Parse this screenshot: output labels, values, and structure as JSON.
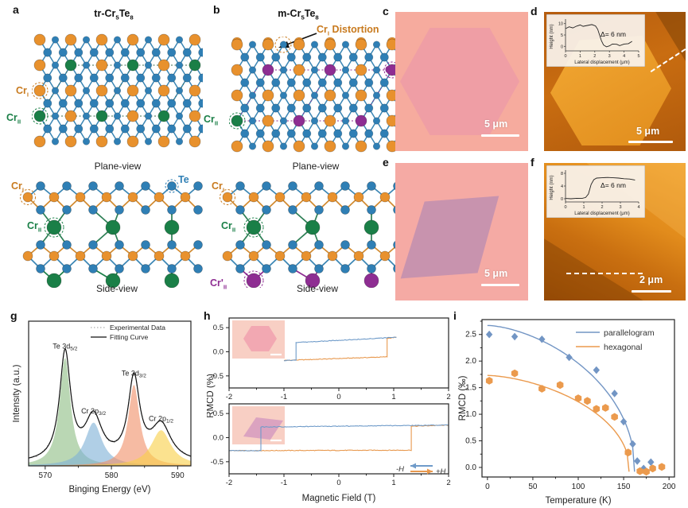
{
  "panel_labels": {
    "a": "a",
    "b": "b",
    "c": "c",
    "d": "d",
    "e": "e",
    "f": "f",
    "g": "g",
    "h": "h",
    "i": "i"
  },
  "colors": {
    "te_atom": "#2f7fb5",
    "cr1_atom": "#e8912d",
    "cr2_atom": "#1a7f47",
    "cr2p_atom": "#8e2d92",
    "bond": "#3b86b4",
    "series_blue": "#7295c4",
    "series_orange": "#eb9a4d",
    "optical_bg": "#f6ab9e",
    "optical_hexagon": "#ee9ca6",
    "optical_parallelogram": "#c08fb0",
    "afm_bright": "#f0a02c",
    "afm_dark": "#a9540c"
  },
  "panel_a": {
    "title": {
      "p1": "tr-Cr",
      "s1": "5",
      "p2": "Te",
      "s2": "8"
    },
    "plane_caption": "Plane-view",
    "side_caption": "Side-view",
    "cr1": {
      "t": "Cr",
      "s": "I"
    },
    "cr2": {
      "t": "Cr",
      "s": "II"
    },
    "te_label": "Te"
  },
  "panel_b": {
    "title": {
      "p1": "m-Cr",
      "s1": "5",
      "p2": "Te",
      "s2": "8"
    },
    "distortion": {
      "t": "Cr",
      "s": "I",
      "rest": " Distortion"
    },
    "plane_caption": "Plane-view",
    "side_caption": "Side-view",
    "cr1": {
      "t": "Cr",
      "s": "I"
    },
    "cr2": {
      "t": "Cr",
      "s": "II"
    },
    "cr2p": {
      "t": "Cr'",
      "s": "II"
    }
  },
  "panel_c": {
    "scale_bar": "5 μm"
  },
  "panel_d": {
    "scale_bar": "5 μm"
  },
  "panel_e": {
    "scale_bar": "5 μm"
  },
  "panel_f": {
    "scale_bar": "2 μm"
  },
  "chart_data": [
    {
      "id": "xps",
      "type": "line",
      "panel": "g",
      "xlabel": "Binging Energy (eV)",
      "ylabel": "Intensity (a.u.)",
      "xlim": [
        567.5,
        592
      ],
      "xticks": [
        570,
        580,
        590
      ],
      "xminor": [
        575,
        585
      ],
      "legend": [
        {
          "label": "Experimental Data",
          "style": "dotted"
        },
        {
          "label": "Fitting Curve",
          "style": "solid"
        }
      ],
      "baseline": 0.025,
      "peaks": [
        {
          "name": "Te 3d",
          "sub": "5/2",
          "center": 573.0,
          "height": 1.0,
          "width": 1.0,
          "color": "#8fbf86"
        },
        {
          "name": "Cr 2p",
          "sub": "3/2",
          "center": 577.3,
          "height": 0.4,
          "width": 1.55,
          "color": "#7fb2d7"
        },
        {
          "name": "Te 3d",
          "sub": "3/2",
          "center": 583.4,
          "height": 0.75,
          "width": 1.05,
          "color": "#f0926a"
        },
        {
          "name": "Cr 2p",
          "sub": "1/2",
          "center": 587.5,
          "height": 0.33,
          "width": 1.8,
          "color": "#f8d04b"
        }
      ]
    },
    {
      "id": "rmcd_loops",
      "type": "hysteresis",
      "panel": "h",
      "xlabel": "Magnetic Field (T)",
      "ylabel": "RMCD (%)",
      "xlim": [
        -2,
        2
      ],
      "ylim": [
        -0.75,
        0.7
      ],
      "xticks": [
        -2,
        -1,
        0,
        1,
        2
      ],
      "yticks": [
        0.5,
        0.0,
        -0.5
      ],
      "colors": {
        "down": "#6f9bc9",
        "up": "#e8994f"
      },
      "arrow_legend": {
        "neg": "-H",
        "pos": "+H"
      },
      "panels": [
        {
          "inset": "hexagonal",
          "sweep_down": {
            "x_start": 1.05,
            "y_start": 0.3,
            "x_jump": -0.78,
            "y_before": 0.19,
            "y_after": -0.175,
            "x_end": -1.0,
            "y_end": -0.18
          },
          "sweep_up": {
            "x_start": -1.0,
            "y_start": -0.18,
            "x_jump": 0.88,
            "y_before": -0.105,
            "y_after": 0.28,
            "x_end": 1.05,
            "y_end": 0.3
          }
        },
        {
          "inset": "parallelogram",
          "sweep_down": {
            "x_start": 2.0,
            "y_start": 0.26,
            "x_jump": -1.42,
            "y_before": 0.22,
            "y_after": -0.27,
            "x_end": -2.0,
            "y_end": -0.27
          },
          "sweep_up": {
            "x_start": -2.0,
            "y_start": -0.27,
            "x_jump": 1.32,
            "y_before": -0.26,
            "y_after": 0.235,
            "x_end": 2.0,
            "y_end": 0.26
          }
        }
      ]
    },
    {
      "id": "rmcd_vs_T",
      "type": "scatter",
      "panel": "i",
      "xlabel": "Temperature (K)",
      "ylabel": "RMCD (‰)",
      "xlim": [
        -6,
        206
      ],
      "ylim": [
        -0.18,
        2.78
      ],
      "xticks": [
        0,
        50,
        100,
        150,
        200
      ],
      "yticks": [
        0.0,
        0.5,
        1.0,
        1.5,
        2.0,
        2.5
      ],
      "legend_position": "top-right",
      "series": [
        {
          "name": "parallelogram",
          "color": "#7295c4",
          "marker": "diamond",
          "tc": 162,
          "amp": 2.67,
          "points": [
            [
              2,
              2.5
            ],
            [
              30,
              2.46
            ],
            [
              60,
              2.41
            ],
            [
              90,
              2.07
            ],
            [
              120,
              1.83
            ],
            [
              140,
              1.39
            ],
            [
              150,
              0.86
            ],
            [
              160,
              0.44
            ],
            [
              165,
              0.12
            ],
            [
              172,
              -0.02
            ],
            [
              180,
              0.1
            ]
          ]
        },
        {
          "name": "hexagonal",
          "color": "#eb9a4d",
          "marker": "hexagon",
          "tc": 156,
          "amp": 1.73,
          "points": [
            [
              2,
              1.63
            ],
            [
              30,
              1.77
            ],
            [
              60,
              1.48
            ],
            [
              80,
              1.55
            ],
            [
              100,
              1.3
            ],
            [
              110,
              1.25
            ],
            [
              120,
              1.1
            ],
            [
              130,
              1.12
            ],
            [
              140,
              0.95
            ],
            [
              155,
              0.28
            ],
            [
              168,
              -0.07
            ],
            [
              175,
              -0.08
            ],
            [
              182,
              -0.02
            ],
            [
              192,
              0.01
            ]
          ]
        }
      ]
    },
    {
      "id": "height_profile_d",
      "type": "line",
      "panel": "d-inset",
      "xlabel": "Lateral displacement (μm)",
      "ylabel": "Height (nm)",
      "annotation": "Δ= 6 nm",
      "xlim": [
        0,
        5
      ],
      "ylim": [
        -2,
        12
      ],
      "xticks": [
        0,
        1,
        2,
        3,
        4,
        5
      ],
      "yticks": [
        0,
        5,
        10
      ],
      "points": [
        [
          0,
          7.8
        ],
        [
          0.25,
          8.6
        ],
        [
          0.5,
          8.1
        ],
        [
          0.75,
          8.9
        ],
        [
          1.0,
          9.4
        ],
        [
          1.2,
          8.8
        ],
        [
          1.5,
          9.2
        ],
        [
          1.8,
          9.6
        ],
        [
          2.05,
          9.0
        ],
        [
          2.2,
          7.5
        ],
        [
          2.45,
          2.5
        ],
        [
          2.6,
          0.6
        ],
        [
          2.8,
          -0.2
        ],
        [
          3.0,
          0.2
        ],
        [
          3.2,
          1.0
        ],
        [
          3.5,
          0.9
        ],
        [
          3.7,
          0.3
        ],
        [
          4.0,
          1.0
        ],
        [
          4.3,
          1.2
        ],
        [
          4.55,
          2.2
        ]
      ]
    },
    {
      "id": "height_profile_f",
      "type": "line",
      "panel": "f-inset",
      "xlabel": "Lateral displacement (μm)",
      "ylabel": "Height (nm)",
      "annotation": "Δ= 6 nm",
      "xlim": [
        0,
        4
      ],
      "ylim": [
        -1,
        9
      ],
      "xticks": [
        0,
        1,
        2,
        3,
        4
      ],
      "yticks": [
        0,
        4,
        8
      ],
      "points": [
        [
          0,
          0.1
        ],
        [
          0.3,
          0.0
        ],
        [
          0.6,
          0.15
        ],
        [
          0.9,
          0.1
        ],
        [
          1.1,
          0.4
        ],
        [
          1.25,
          1.5
        ],
        [
          1.4,
          4.5
        ],
        [
          1.55,
          6.0
        ],
        [
          1.7,
          6.5
        ],
        [
          2.0,
          6.6
        ],
        [
          2.3,
          6.7
        ],
        [
          2.6,
          6.6
        ],
        [
          2.9,
          6.5
        ],
        [
          3.2,
          6.3
        ],
        [
          3.5,
          6.2
        ],
        [
          3.8,
          5.9
        ]
      ]
    }
  ]
}
